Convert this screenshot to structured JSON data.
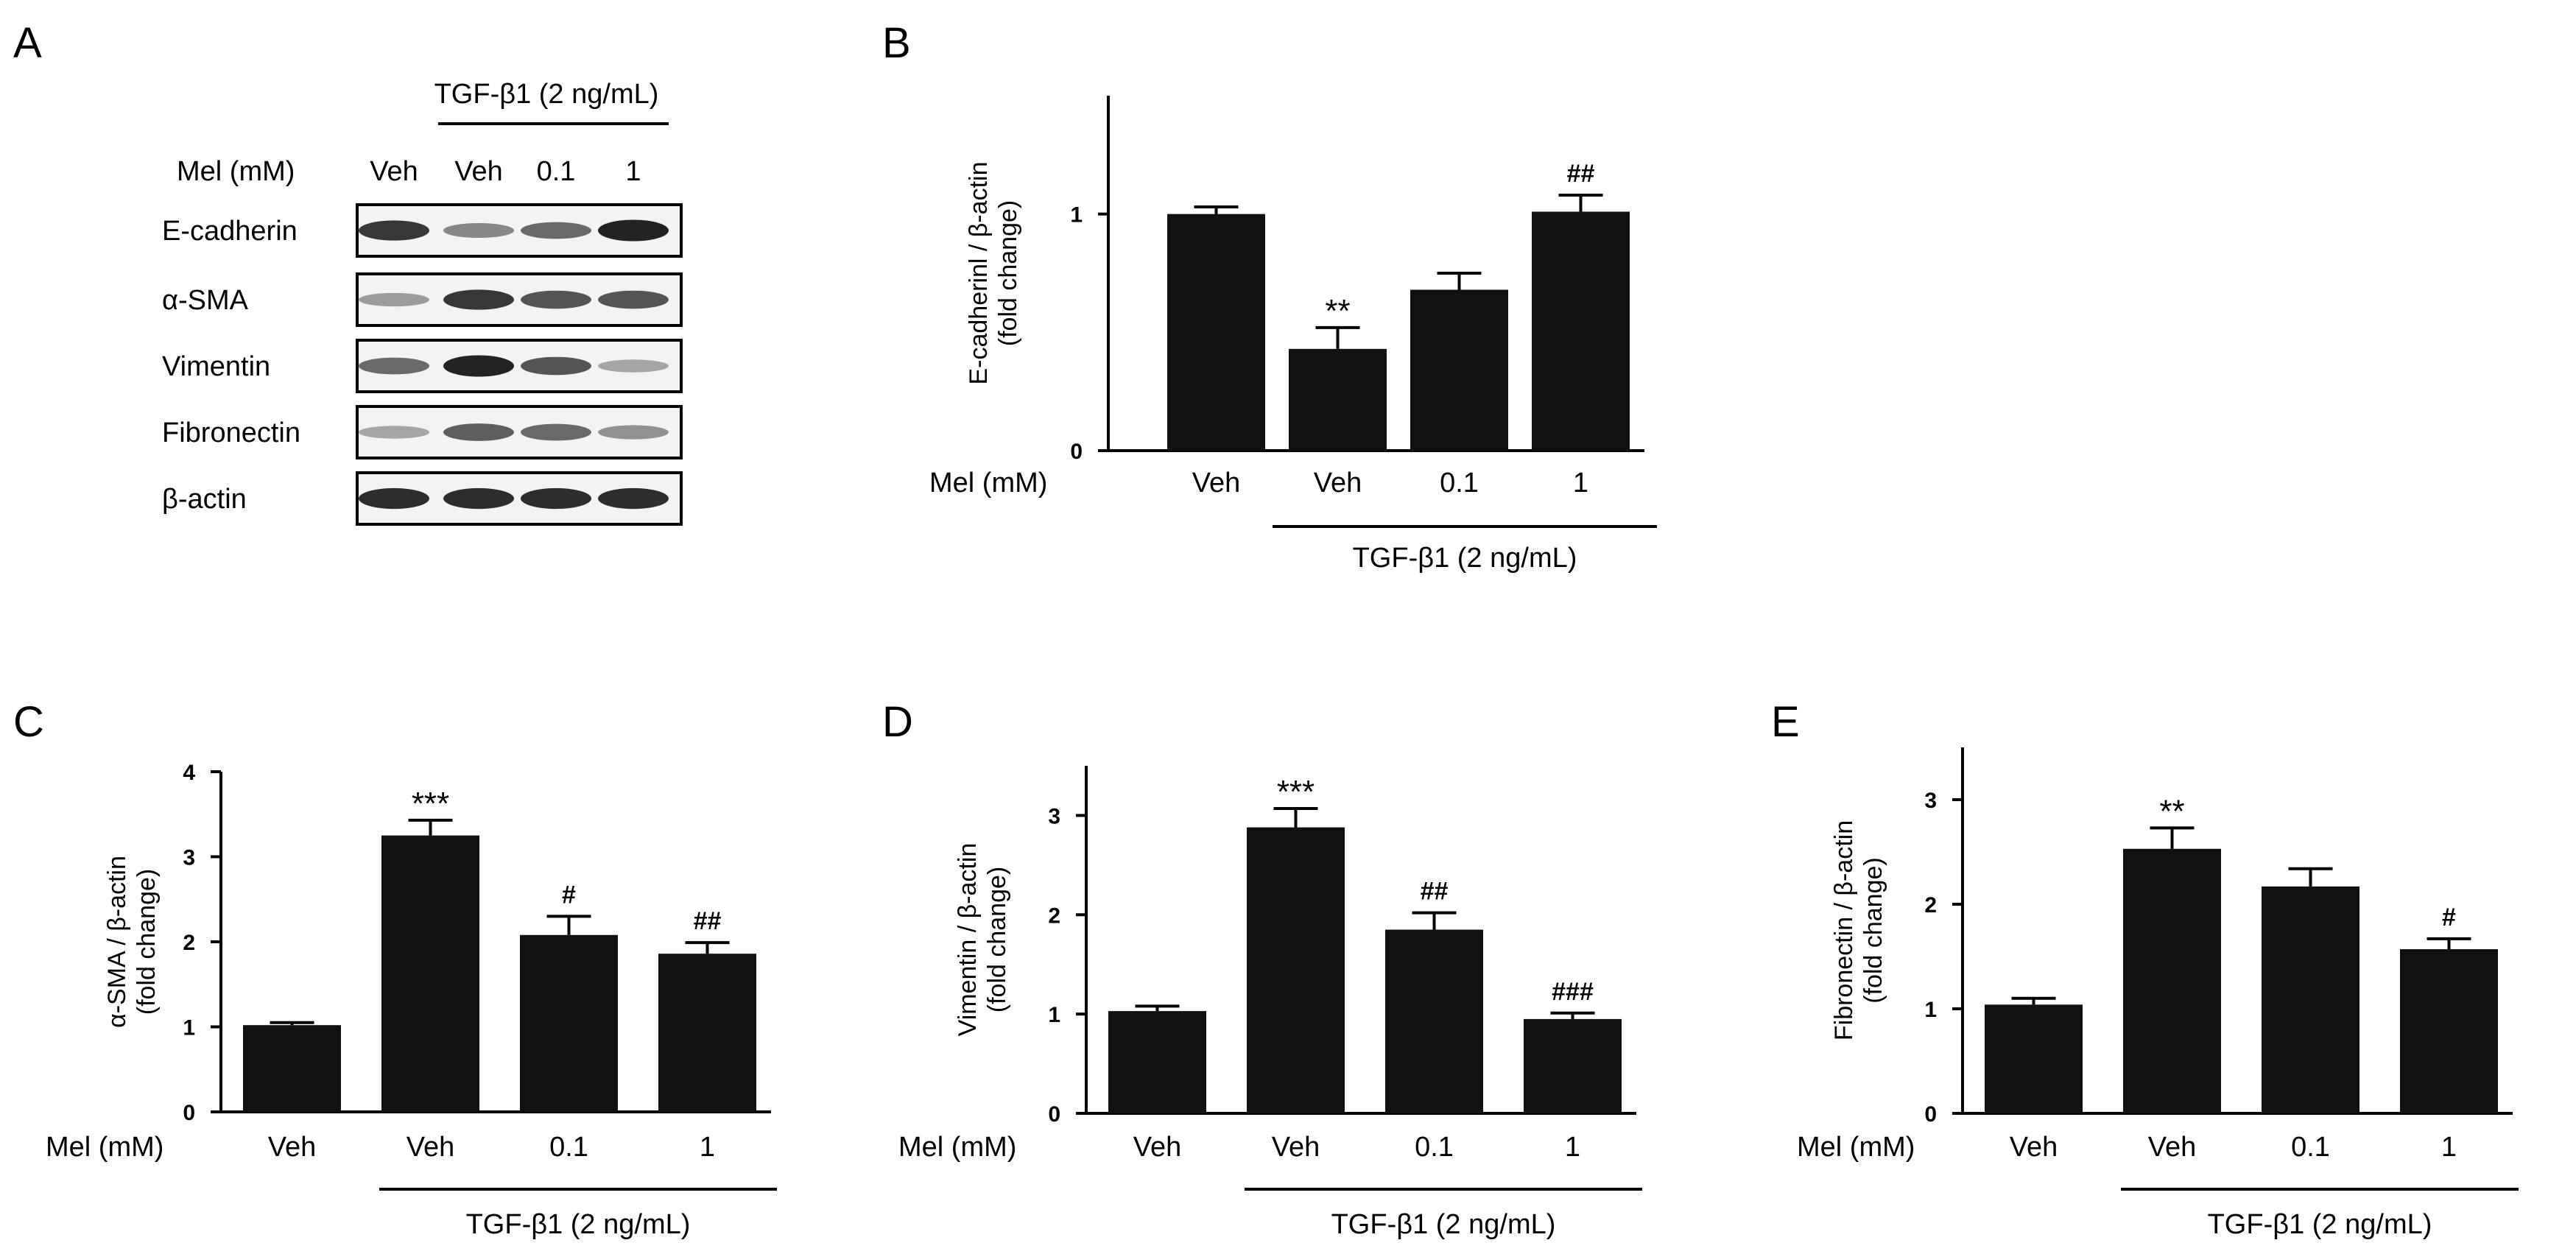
{
  "figure": {
    "panel_letters": [
      "A",
      "B",
      "C",
      "D",
      "E"
    ],
    "treatment_label": "TGF-β1 (2 ng/mL)",
    "mel_label": "Mel (mM)",
    "conditions": [
      "Veh",
      "Veh",
      "0.1",
      "1"
    ],
    "bar_color": "#111111"
  },
  "blot": {
    "rows": [
      {
        "name": "E-cadherin",
        "intensity": [
          0.85,
          0.45,
          0.6,
          0.95
        ]
      },
      {
        "name": "α-SMA",
        "intensity": [
          0.35,
          0.85,
          0.7,
          0.7
        ]
      },
      {
        "name": "Vimentin",
        "intensity": [
          0.6,
          0.95,
          0.7,
          0.3
        ]
      },
      {
        "name": "Fibronectin",
        "intensity": [
          0.3,
          0.65,
          0.6,
          0.4
        ]
      },
      {
        "name": "β-actin",
        "intensity": [
          0.9,
          0.9,
          0.9,
          0.9
        ]
      }
    ]
  },
  "chart_data": [
    {
      "panel": "B",
      "type": "bar",
      "categories": [
        "Veh",
        "Veh",
        "0.1",
        "1"
      ],
      "values": [
        1.0,
        0.43,
        0.68,
        1.01
      ],
      "errors": [
        0.03,
        0.09,
        0.07,
        0.07
      ],
      "annotations": [
        "",
        "**",
        "",
        "##"
      ],
      "ylabel": [
        "E-cadherinl / β-actin",
        "(fold change)"
      ],
      "ylim": [
        0,
        1.5
      ],
      "yticks": [
        0,
        1
      ]
    },
    {
      "panel": "C",
      "type": "bar",
      "categories": [
        "Veh",
        "Veh",
        "0.1",
        "1"
      ],
      "values": [
        1.02,
        3.25,
        2.08,
        1.86
      ],
      "errors": [
        0.03,
        0.18,
        0.22,
        0.13
      ],
      "annotations": [
        "",
        "***",
        "#",
        "##"
      ],
      "ylabel": [
        "α-SMA / β-actin",
        "(fold change)"
      ],
      "ylim": [
        0,
        4
      ],
      "yticks": [
        0,
        1,
        2,
        3,
        4
      ]
    },
    {
      "panel": "D",
      "type": "bar",
      "categories": [
        "Veh",
        "Veh",
        "0.1",
        "1"
      ],
      "values": [
        1.03,
        2.88,
        1.85,
        0.95
      ],
      "errors": [
        0.05,
        0.19,
        0.17,
        0.06
      ],
      "annotations": [
        "",
        "***",
        "##",
        "###"
      ],
      "ylabel": [
        "Vimentin / β-actin",
        "(fold change)"
      ],
      "ylim": [
        0,
        3.5
      ],
      "yticks": [
        0,
        1,
        2,
        3
      ]
    },
    {
      "panel": "E",
      "type": "bar",
      "categories": [
        "Veh",
        "Veh",
        "0.1",
        "1"
      ],
      "values": [
        1.04,
        2.53,
        2.17,
        1.57
      ],
      "errors": [
        0.06,
        0.2,
        0.17,
        0.1
      ],
      "annotations": [
        "",
        "**",
        "",
        "#"
      ],
      "ylabel": [
        "Fibronectin / β-actin",
        "(fold change)"
      ],
      "ylim": [
        0,
        3.5
      ],
      "yticks": [
        0,
        1,
        2,
        3
      ]
    }
  ]
}
